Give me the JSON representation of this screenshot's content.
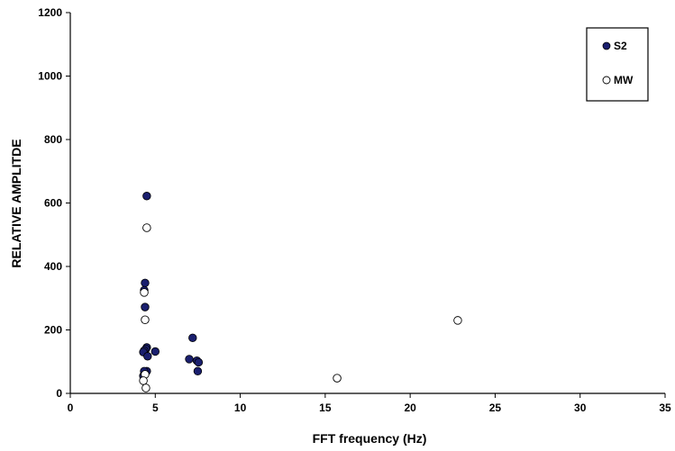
{
  "chart_data": {
    "type": "scatter",
    "title": "",
    "xlabel": "FFT frequency (Hz)",
    "ylabel": "RELATIVE AMPLITDE",
    "xlim": [
      0,
      35
    ],
    "ylim": [
      0,
      1200
    ],
    "x_ticks": [
      0,
      5,
      10,
      15,
      20,
      25,
      30,
      35
    ],
    "y_ticks": [
      0,
      200,
      400,
      600,
      800,
      1000,
      1200
    ],
    "grid": false,
    "legend_position": "top-right",
    "series": [
      {
        "name": "S2",
        "marker": "filled-circle",
        "color": "#1a1f6e",
        "points": [
          [
            4.5,
            622
          ],
          [
            4.4,
            348
          ],
          [
            4.35,
            325
          ],
          [
            4.4,
            272
          ],
          [
            4.5,
            145
          ],
          [
            4.45,
            140
          ],
          [
            4.35,
            135
          ],
          [
            4.3,
            130
          ],
          [
            5.0,
            132
          ],
          [
            4.55,
            117
          ],
          [
            4.5,
            70
          ],
          [
            4.35,
            70
          ],
          [
            4.3,
            55
          ],
          [
            7.2,
            175
          ],
          [
            7.0,
            108
          ],
          [
            7.45,
            103
          ],
          [
            7.55,
            98
          ],
          [
            7.5,
            70
          ]
        ]
      },
      {
        "name": "MW",
        "marker": "open-circle",
        "color": "#000000",
        "points": [
          [
            4.5,
            522
          ],
          [
            4.35,
            318
          ],
          [
            4.4,
            232
          ],
          [
            4.4,
            60
          ],
          [
            4.3,
            40
          ],
          [
            4.45,
            17
          ],
          [
            15.7,
            48
          ],
          [
            22.8,
            230
          ]
        ]
      }
    ]
  }
}
